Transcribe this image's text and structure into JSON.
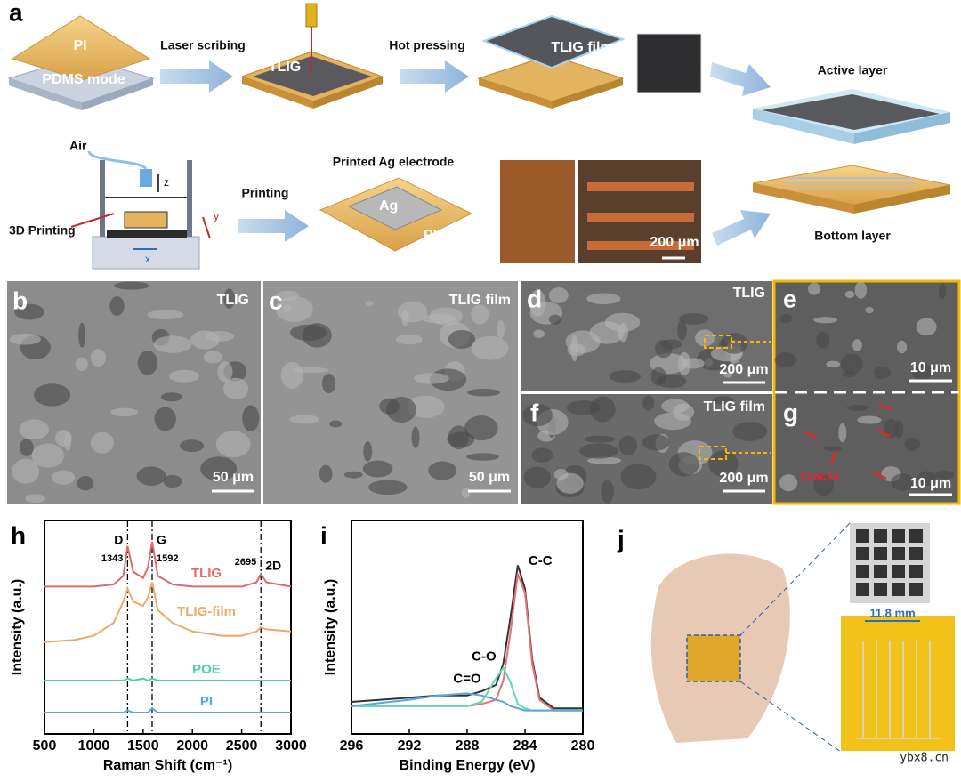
{
  "panel_labels": [
    "a",
    "b",
    "c",
    "d",
    "e",
    "f",
    "g",
    "h",
    "i",
    "j"
  ],
  "panel_a": {
    "pi": "PI",
    "pdms": "PDMS mode",
    "laser": "Laser scribing",
    "tlig": "TLIG",
    "hot": "Hot pressing",
    "film": "TLIG film",
    "active": "Active layer",
    "air": "Air",
    "z": "z",
    "printing3d": "3D Printing",
    "y": "y",
    "x": "x",
    "printing": "Printing",
    "electrode": "Printed Ag electrode",
    "ag": "Ag",
    "pi2": "PI",
    "scale": "200 μm",
    "bottom": "Bottom layer"
  },
  "panel_b": {
    "label": "TLIG",
    "scale": "50 μm"
  },
  "panel_c": {
    "label": "TLIG film",
    "scale": "50 μm"
  },
  "panel_d": {
    "label": "TLIG",
    "scale": "200 μm"
  },
  "panel_e": {
    "scale": "10 μm"
  },
  "panel_f": {
    "label": "TLIG film",
    "scale": "200 μm"
  },
  "panel_g": {
    "cracks": "Cracks",
    "scale": "10 μm"
  },
  "panel_j": {
    "width": "11.8 mm"
  },
  "watermark": "ybx8.cn",
  "chart_data": [
    {
      "type": "line",
      "xlabel": "Raman Shift (cm⁻¹)",
      "ylabel": "Intensity (a.u.)",
      "x": [
        500,
        800,
        1000,
        1200,
        1300,
        1343,
        1400,
        1500,
        1550,
        1592,
        1650,
        1800,
        2000,
        2300,
        2500,
        2650,
        2695,
        2750,
        3000
      ],
      "xlim": [
        500,
        3000
      ],
      "xticks": [
        500,
        1000,
        1500,
        2000,
        2500,
        3000
      ],
      "ylim": [
        0,
        100
      ],
      "peaks": [
        {
          "name": "D",
          "position": 1343
        },
        {
          "name": "G",
          "position": 1592
        },
        {
          "name": "2D",
          "position": 2695
        }
      ],
      "series": [
        {
          "name": "TLIG",
          "color": "#e06a6a",
          "values": [
            69,
            69,
            69,
            70,
            74,
            88,
            76,
            73,
            78,
            90,
            74,
            70,
            69,
            69,
            69,
            71,
            75,
            71,
            69
          ]
        },
        {
          "name": "TLIG-film",
          "color": "#f0a868",
          "values": [
            43,
            44,
            46,
            52,
            62,
            68,
            62,
            60,
            64,
            71,
            58,
            52,
            48,
            46,
            46,
            48,
            50,
            49,
            48
          ]
        },
        {
          "name": "POE",
          "color": "#4fd1a5",
          "values": [
            25,
            25,
            25,
            25,
            25,
            26,
            25,
            26,
            25,
            26,
            25,
            25,
            25,
            25,
            25,
            25,
            25,
            25,
            25
          ]
        },
        {
          "name": "PI",
          "color": "#5aa6e0",
          "values": [
            10,
            10,
            10,
            10,
            10,
            11,
            10,
            10,
            10,
            12,
            10,
            10,
            10,
            10,
            10,
            10,
            10,
            10,
            10
          ]
        }
      ]
    },
    {
      "type": "line",
      "xlabel": "Binding Energy (eV)",
      "ylabel": "Intensity (a.u.)",
      "x": [
        296,
        292,
        290,
        288,
        287,
        286,
        285.5,
        285,
        284.5,
        284,
        283.5,
        283,
        282,
        280
      ],
      "xlim": [
        296,
        280
      ],
      "xticks": [
        296,
        292,
        288,
        284,
        280
      ],
      "ylim": [
        0,
        100
      ],
      "series": [
        {
          "color": "#333333",
          "values": [
            15,
            17,
            18,
            18,
            20,
            23,
            33,
            55,
            79,
            68,
            35,
            17,
            12,
            12
          ]
        },
        {
          "name": "C-C",
          "color": "#e87070",
          "values": [
            13,
            13,
            13,
            13,
            14,
            16,
            25,
            48,
            75,
            66,
            33,
            16,
            11,
            11
          ]
        },
        {
          "name": "C-O",
          "color": "#5fd9b0",
          "values": [
            13,
            13,
            13,
            13,
            15,
            26,
            31,
            24,
            14,
            12,
            11,
            11,
            11,
            11
          ]
        },
        {
          "name": "C=O",
          "color": "#5aa6e0",
          "values": [
            13,
            16,
            18,
            19,
            18,
            16,
            15,
            13,
            12,
            11,
            11,
            11,
            11,
            11
          ]
        }
      ]
    }
  ]
}
